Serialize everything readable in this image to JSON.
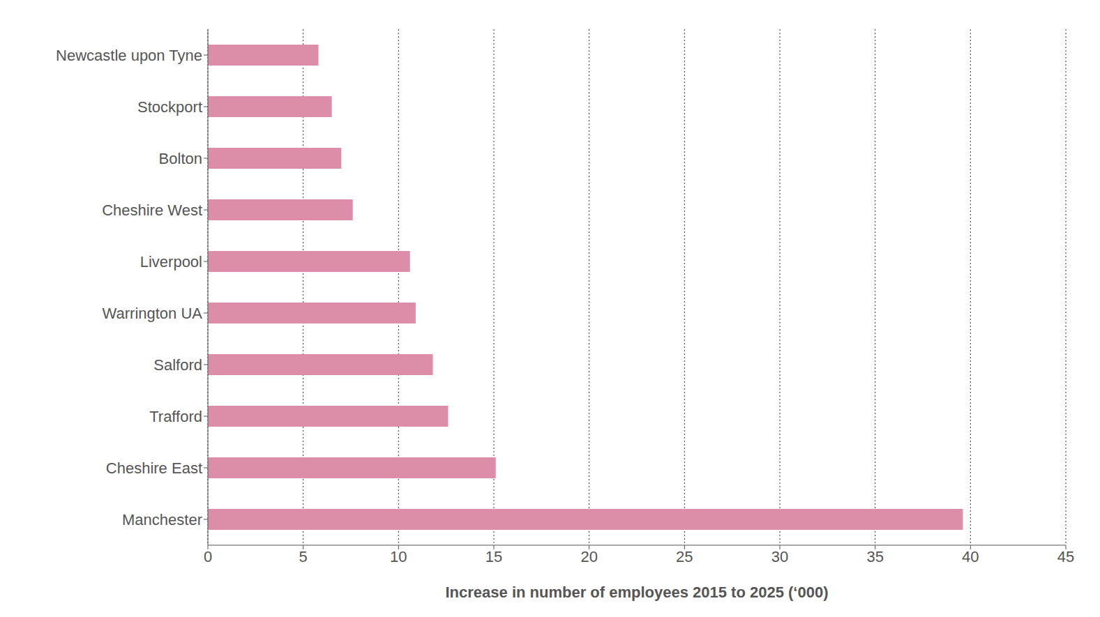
{
  "chart_data": {
    "type": "bar",
    "orientation": "horizontal",
    "categories": [
      "Newcastle upon Tyne",
      "Stockport",
      "Bolton",
      "Cheshire West",
      "Liverpool",
      "Warrington UA",
      "Salford",
      "Trafford",
      "Cheshire East",
      "Manchester"
    ],
    "values": [
      5.8,
      6.5,
      7.0,
      7.6,
      10.6,
      10.9,
      11.8,
      12.6,
      15.1,
      39.6
    ],
    "color": "#dc8ea9",
    "xlabel": "Increase in number of employees 2015 to 2025 (‘000)",
    "xlim": [
      0,
      45
    ],
    "xticks": [
      0,
      5,
      10,
      15,
      20,
      25,
      30,
      35,
      40,
      45
    ],
    "grid": true
  }
}
